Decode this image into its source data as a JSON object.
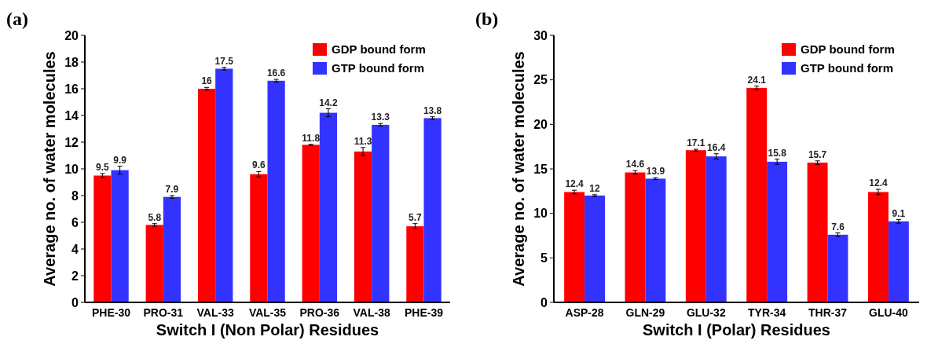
{
  "chart_data": [
    {
      "type": "bar",
      "title": "(a)",
      "xlabel": "Switch I (Non Polar) Residues",
      "ylabel": "Average no. of water molecules",
      "categories": [
        "PHE-30",
        "PRO-31",
        "VAL-33",
        "VAL-35",
        "PRO-36",
        "VAL-38",
        "PHE-39"
      ],
      "series": [
        {
          "name": "GDP bound form",
          "color": "#ff0000",
          "values": [
            9.5,
            5.8,
            16,
            9.6,
            11.8,
            11.3,
            5.7
          ],
          "errors": [
            0.15,
            0.1,
            0.1,
            0.2,
            0.03,
            0.3,
            0.2
          ]
        },
        {
          "name": "GTP bound form",
          "color": "#3333ff",
          "values": [
            9.9,
            7.9,
            17.5,
            16.6,
            14.2,
            13.3,
            13.8
          ],
          "errors": [
            0.3,
            0.1,
            0.1,
            0.1,
            0.3,
            0.1,
            0.1
          ]
        }
      ],
      "ylim": [
        0,
        20
      ],
      "yticks": [
        0,
        2,
        4,
        6,
        8,
        10,
        12,
        14,
        16,
        18,
        20
      ],
      "data_labels": true,
      "legend": "top right",
      "grid": false
    },
    {
      "type": "bar",
      "title": "(b)",
      "xlabel": "Switch I (Polar) Residues",
      "ylabel": "Average no. of water molecules",
      "categories": [
        "ASP-28",
        "GLN-29",
        "GLU-32",
        "TYR-34",
        "THR-37",
        "GLU-40"
      ],
      "series": [
        {
          "name": "GDP bound form",
          "color": "#ff0000",
          "values": [
            12.4,
            14.6,
            17.1,
            24.1,
            15.7,
            12.4
          ],
          "errors": [
            0.2,
            0.2,
            0.1,
            0.2,
            0.2,
            0.3
          ]
        },
        {
          "name": "GTP bound form",
          "color": "#3333ff",
          "values": [
            12,
            13.9,
            16.4,
            15.8,
            7.6,
            9.1
          ],
          "errors": [
            0.1,
            0.1,
            0.3,
            0.3,
            0.2,
            0.2
          ]
        }
      ],
      "ylim": [
        0,
        30
      ],
      "yticks": [
        0,
        5,
        10,
        15,
        20,
        25,
        30
      ],
      "data_labels": true,
      "legend": "top right",
      "grid": false
    }
  ]
}
